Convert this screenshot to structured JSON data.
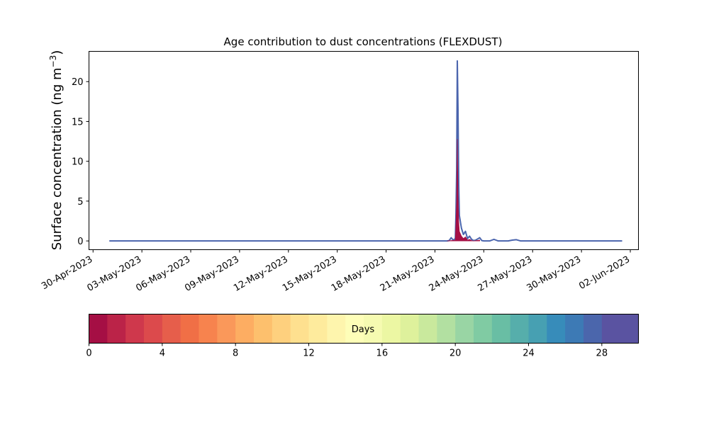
{
  "chart_data": {
    "type": "area",
    "title": "Age contribution to dust concentrations (FLEXDUST)",
    "ylabel_main": "Surface concentration (ng m",
    "ylabel_exp": "−3",
    "ylabel_close": ")",
    "xlabel": "",
    "ylim": [
      -1.1,
      23.8
    ],
    "yticks": [
      0,
      5,
      10,
      15,
      20
    ],
    "xlim": [
      "2023-04-29T18:00",
      "2023-06-02T12:00"
    ],
    "xticks": [
      {
        "date": "2023-04-30",
        "label": "30-Apr-2023"
      },
      {
        "date": "2023-05-03",
        "label": "03-May-2023"
      },
      {
        "date": "2023-05-06",
        "label": "06-May-2023"
      },
      {
        "date": "2023-05-09",
        "label": "09-May-2023"
      },
      {
        "date": "2023-05-12",
        "label": "12-May-2023"
      },
      {
        "date": "2023-05-15",
        "label": "15-May-2023"
      },
      {
        "date": "2023-05-18",
        "label": "18-May-2023"
      },
      {
        "date": "2023-05-21",
        "label": "21-May-2023"
      },
      {
        "date": "2023-05-24",
        "label": "24-May-2023"
      },
      {
        "date": "2023-05-27",
        "label": "27-May-2023"
      },
      {
        "date": "2023-05-30",
        "label": "30-May-2023"
      },
      {
        "date": "2023-06-02",
        "label": "02-Jun-2023"
      }
    ],
    "series": [
      {
        "kind": "total",
        "color": "#4a64ad",
        "x": [
          "2023-05-01T00:00",
          "2023-05-21T18:00",
          "2023-05-21T21:00",
          "2023-05-22T00:00",
          "2023-05-22T03:00",
          "2023-05-22T06:00",
          "2023-05-22T07:00",
          "2023-05-22T08:00",
          "2023-05-22T09:00",
          "2023-05-22T10:00",
          "2023-05-22T11:00",
          "2023-05-22T12:00",
          "2023-05-22T15:00",
          "2023-05-22T18:00",
          "2023-05-22T21:00",
          "2023-05-23T00:00",
          "2023-05-23T03:00",
          "2023-05-23T06:00",
          "2023-05-23T09:00",
          "2023-05-23T12:00",
          "2023-05-23T15:00",
          "2023-05-23T18:00",
          "2023-05-23T21:00",
          "2023-05-24T00:00",
          "2023-05-24T03:00",
          "2023-05-24T06:00",
          "2023-05-24T09:00",
          "2023-05-24T12:00",
          "2023-05-24T15:00",
          "2023-05-24T18:00",
          "2023-05-24T21:00",
          "2023-05-25T00:00",
          "2023-05-25T06:00",
          "2023-05-25T12:00",
          "2023-05-25T18:00",
          "2023-05-26T00:00",
          "2023-05-26T06:00",
          "2023-05-26T12:00",
          "2023-06-01T12:00"
        ],
        "y": [
          0,
          0,
          0.05,
          0.4,
          0.1,
          0.3,
          3.5,
          9.0,
          22.6,
          16.5,
          7.0,
          3.2,
          1.6,
          0.8,
          1.2,
          0.3,
          0.6,
          0.2,
          0.05,
          0.1,
          0.25,
          0.4,
          0.05,
          0,
          0,
          0,
          0,
          0.1,
          0.2,
          0.1,
          0,
          0,
          0,
          0,
          0.1,
          0.15,
          0,
          0,
          0
        ]
      },
      {
        "kind": "age-0-1-days",
        "color": "#a50f44",
        "x": [
          "2023-05-21T18:00",
          "2023-05-22T06:00",
          "2023-05-22T07:00",
          "2023-05-22T08:00",
          "2023-05-22T09:00",
          "2023-05-22T10:00",
          "2023-05-22T11:00",
          "2023-05-22T12:00",
          "2023-05-22T15:00",
          "2023-05-22T18:00",
          "2023-05-22T21:00",
          "2023-05-23T00:00",
          "2023-05-23T03:00",
          "2023-05-23T06:00",
          "2023-05-23T09:00",
          "2023-05-23T18:00"
        ],
        "y": [
          0,
          0.1,
          2.2,
          5.0,
          12.8,
          5.8,
          2.4,
          1.2,
          0.6,
          0.3,
          0.5,
          0.1,
          0.2,
          0.05,
          0,
          0.1
        ]
      }
    ],
    "colorbar": {
      "label": "Days",
      "min": 0,
      "max": 30,
      "ticks": [
        0,
        4,
        8,
        12,
        16,
        20,
        24,
        28
      ],
      "colors": [
        "#a50f44",
        "#bb2348",
        "#cf384c",
        "#dc4a4c",
        "#e65e4b",
        "#f06f46",
        "#f7834e",
        "#fa985a",
        "#fdad62",
        "#fdc06d",
        "#fed07e",
        "#fee08f",
        "#feeb9d",
        "#fef5ad",
        "#fefeb8",
        "#f6fbb1",
        "#ecf7a3",
        "#def19c",
        "#c9e99d",
        "#b2e0a1",
        "#99d5a4",
        "#80cba3",
        "#69bea4",
        "#56aeab",
        "#47a0b2",
        "#378cba",
        "#3d7ab5",
        "#4b66ac",
        "#5a53a1",
        "#5a53a1"
      ]
    }
  }
}
